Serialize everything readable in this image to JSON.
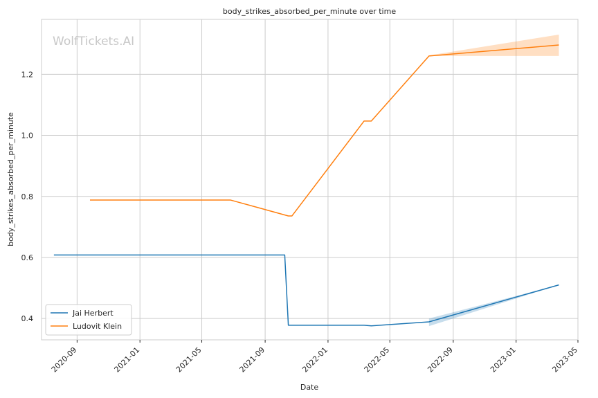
{
  "chart_data": {
    "type": "line",
    "title": "body_strikes_absorbed_per_minute over time",
    "xlabel": "Date",
    "ylabel": "body_strikes_absorbed_per_minute",
    "watermark": "WolfTickets.AI",
    "x_ticks": [
      "2020-09",
      "2021-01",
      "2021-05",
      "2021-09",
      "2022-01",
      "2022-05",
      "2022-09",
      "2023-01",
      "2023-05"
    ],
    "y_ticks": [
      0.4,
      0.6,
      0.8,
      1.0,
      1.2
    ],
    "y_tick_labels": [
      "0.4",
      "0.6",
      "0.8",
      "1.0",
      "1.2"
    ],
    "xlim": [
      "2020-06-24",
      "2023-05-01"
    ],
    "ylim": [
      0.33,
      1.38
    ],
    "grid": true,
    "legend_position": "lower-left",
    "series": [
      {
        "name": "Jai Herbert",
        "color": "#1f77b4",
        "points": [
          {
            "x": "2020-07-18",
            "y": 0.608
          },
          {
            "x": "2021-10-09",
            "y": 0.608
          },
          {
            "x": "2021-10-16",
            "y": 0.378
          },
          {
            "x": "2022-03-12",
            "y": 0.378
          },
          {
            "x": "2022-03-26",
            "y": 0.376
          },
          {
            "x": "2022-07-16",
            "y": 0.389
          },
          {
            "x": "2023-03-25",
            "y": 0.51
          }
        ],
        "band": [
          {
            "x": "2022-07-16",
            "lo": 0.375,
            "hi": 0.4
          },
          {
            "x": "2023-03-25",
            "lo": 0.51,
            "hi": 0.51
          }
        ]
      },
      {
        "name": "Ludovit Klein",
        "color": "#ff7f0e",
        "points": [
          {
            "x": "2020-09-26",
            "y": 0.788
          },
          {
            "x": "2021-06-26",
            "y": 0.788
          },
          {
            "x": "2021-10-16",
            "y": 0.736
          },
          {
            "x": "2021-10-23",
            "y": 0.736
          },
          {
            "x": "2022-03-12",
            "y": 1.047
          },
          {
            "x": "2022-03-26",
            "y": 1.047
          },
          {
            "x": "2022-07-16",
            "y": 1.26
          },
          {
            "x": "2023-03-25",
            "y": 1.296
          }
        ],
        "band": [
          {
            "x": "2022-07-16",
            "lo": 1.26,
            "hi": 1.262
          },
          {
            "x": "2023-03-25",
            "lo": 1.26,
            "hi": 1.33
          }
        ]
      }
    ]
  }
}
